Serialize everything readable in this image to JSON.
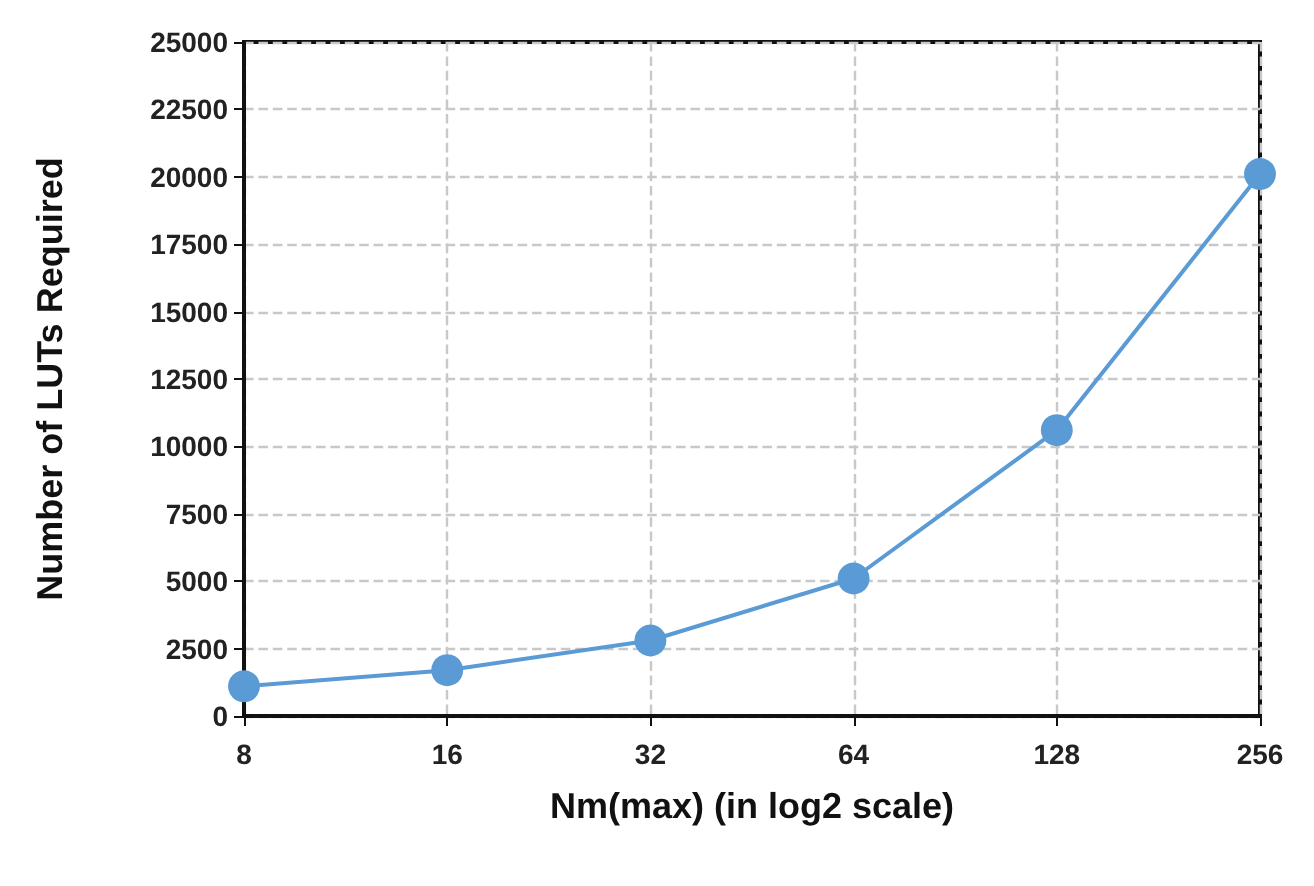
{
  "chart_data": {
    "type": "line",
    "xlabel": "Nm(max) (in log2 scale)",
    "ylabel": "Number of LUTs Required",
    "x": [
      8,
      16,
      32,
      64,
      128,
      256
    ],
    "series": [
      {
        "color": "#5b9bd5",
        "values": [
          1100,
          1700,
          2800,
          5100,
          10600,
          20100
        ]
      }
    ],
    "xlim": [
      8,
      256
    ],
    "xticks": [
      8,
      16,
      32,
      64,
      128,
      256
    ],
    "log": "x",
    "ylim": [
      0,
      25000
    ],
    "yticks": [
      0,
      2500,
      5000,
      7500,
      10000,
      12500,
      15000,
      17500,
      20000,
      22500,
      25000
    ],
    "grid": true,
    "marker": "circle",
    "line_style": "solid"
  }
}
